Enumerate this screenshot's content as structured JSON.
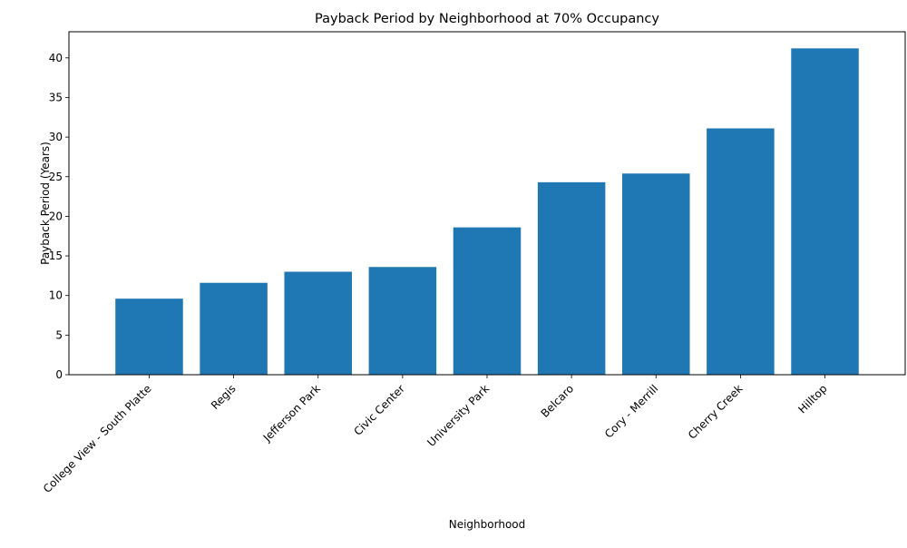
{
  "chart_data": {
    "type": "bar",
    "title": "Payback Period by Neighborhood at 70% Occupancy",
    "xlabel": "Neighborhood",
    "ylabel": "Payback Period (Years)",
    "categories": [
      "College View - South Platte",
      "Regis",
      "Jefferson Park",
      "Civic Center",
      "University Park",
      "Belcaro",
      "Cory - Merrill",
      "Cherry Creek",
      "Hilltop"
    ],
    "values": [
      9.6,
      11.6,
      13.0,
      13.6,
      18.6,
      24.3,
      25.4,
      31.1,
      41.2
    ],
    "ylim": [
      0,
      43.3
    ],
    "yticks": [
      0,
      5,
      10,
      15,
      20,
      25,
      30,
      35,
      40
    ],
    "bar_color": "#1f77b4",
    "grid": false,
    "legend": "none"
  }
}
